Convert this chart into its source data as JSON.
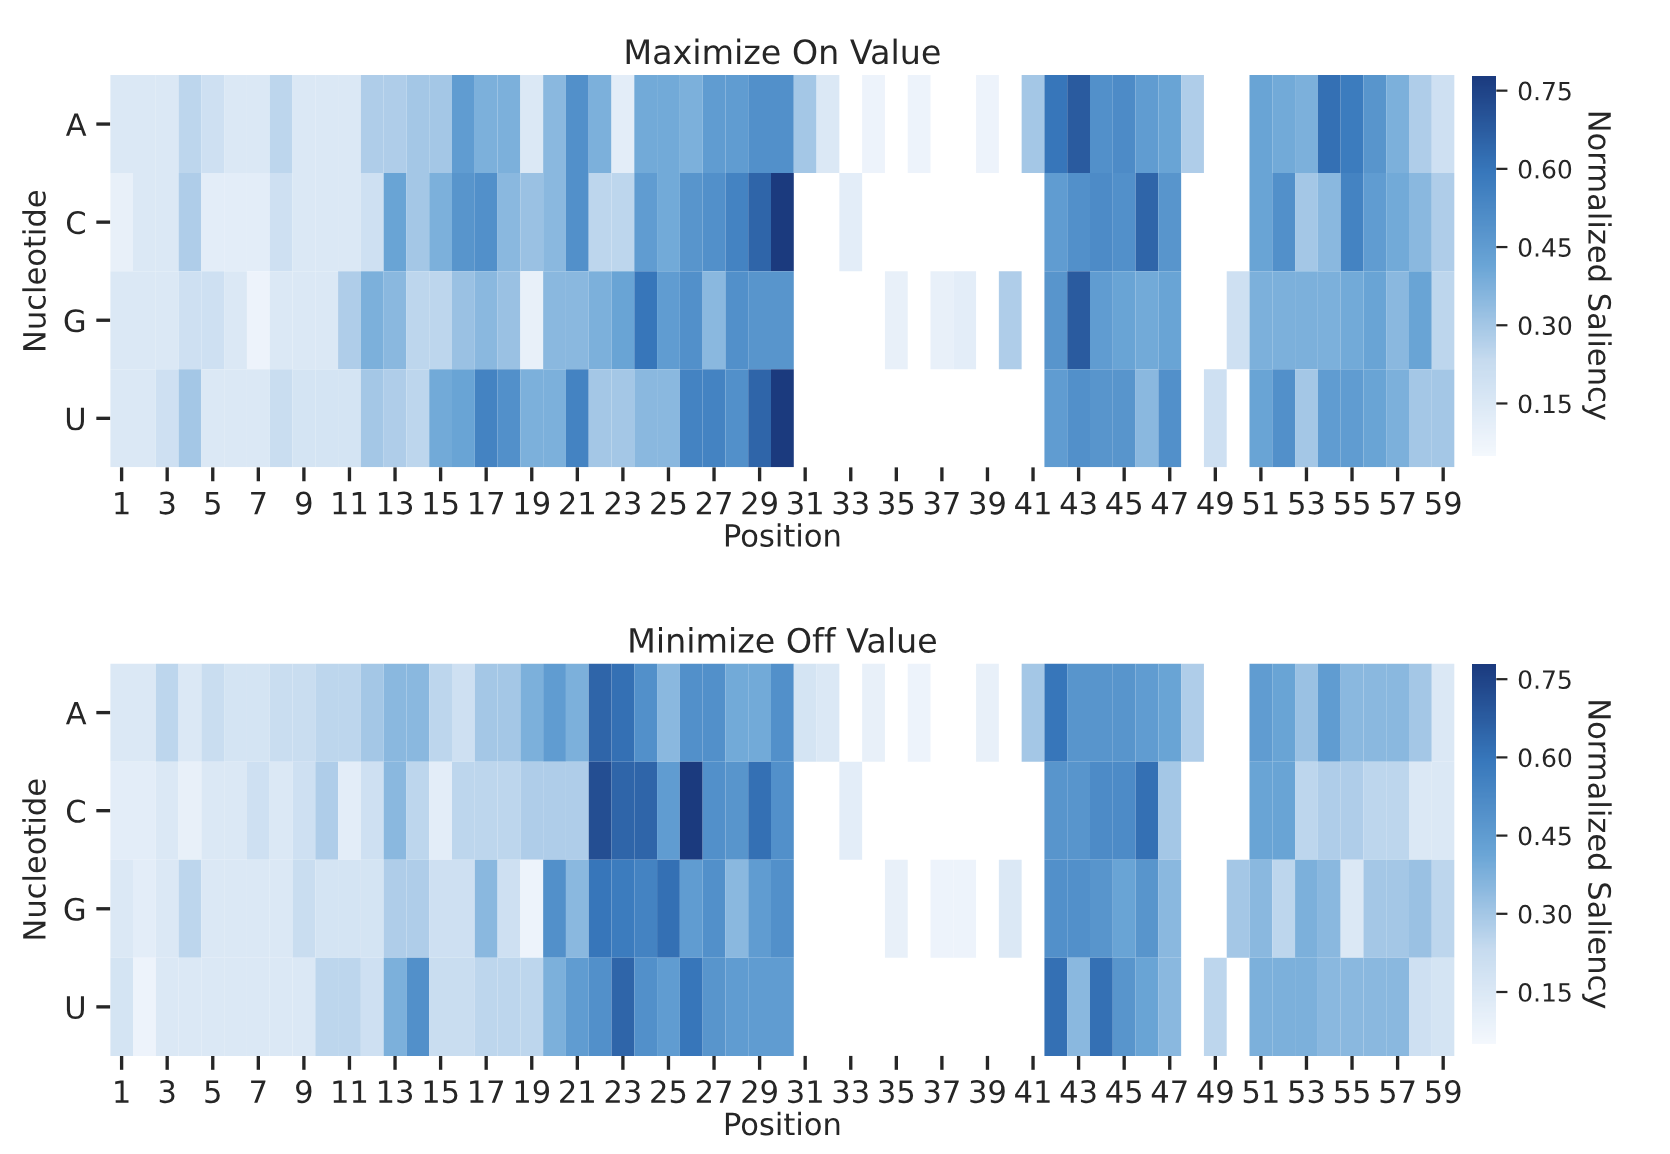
{
  "chart_data": [
    {
      "type": "heatmap",
      "title": "Maximize On Value",
      "xlabel": "Position",
      "ylabel": "Nucleotide",
      "clabel": "Normalized Saliency",
      "categories": [
        "1",
        null,
        "3",
        null,
        "5",
        null,
        "7",
        null,
        "9",
        null,
        "11",
        null,
        "13",
        null,
        "15",
        null,
        "17",
        null,
        "19",
        null,
        "21",
        null,
        "23",
        null,
        "25",
        null,
        "27",
        null,
        "29",
        null,
        "31",
        null,
        "33",
        null,
        "35",
        null,
        "37",
        null,
        "39",
        null,
        "41",
        null,
        "43",
        null,
        "45",
        null,
        "47",
        null,
        "49",
        null,
        "51",
        null,
        "53",
        null,
        "55",
        null,
        "57",
        null,
        "59"
      ],
      "y_categories": [
        "A",
        "C",
        "G",
        "U"
      ],
      "clim": [
        0.05,
        0.78
      ],
      "cticks": [
        {
          "value": 0.15,
          "label": "0.15"
        },
        {
          "value": 0.3,
          "label": "0.30"
        },
        {
          "value": 0.45,
          "label": "0.45"
        },
        {
          "value": 0.6,
          "label": "0.60"
        },
        {
          "value": 0.75,
          "label": "0.75"
        }
      ],
      "cells": [
        [
          0.15,
          0.15,
          0.15,
          0.25,
          0.2,
          0.15,
          0.15,
          0.25,
          0.15,
          0.15,
          0.15,
          0.28,
          0.28,
          0.3,
          0.3,
          0.45,
          0.38,
          0.38,
          0.15,
          0.35,
          0.5,
          0.38,
          0.12,
          0.4,
          0.4,
          0.38,
          0.45,
          0.45,
          0.5,
          0.5,
          0.3,
          0.15,
          null,
          0.08,
          null,
          0.08,
          null,
          null,
          0.08,
          null,
          0.3,
          0.6,
          0.68,
          0.5,
          0.52,
          0.45,
          0.42,
          0.28,
          null,
          null,
          0.42,
          0.4,
          0.38,
          0.62,
          0.58,
          0.48,
          0.38,
          0.28,
          0.2
        ],
        [
          0.1,
          0.15,
          0.15,
          0.28,
          0.12,
          0.12,
          0.12,
          0.2,
          0.15,
          0.15,
          0.15,
          0.2,
          0.42,
          0.3,
          0.38,
          0.48,
          0.5,
          0.35,
          0.32,
          0.35,
          0.5,
          0.25,
          0.25,
          0.45,
          0.4,
          0.48,
          0.5,
          0.55,
          0.65,
          0.78,
          null,
          null,
          0.12,
          null,
          null,
          null,
          null,
          null,
          null,
          null,
          null,
          0.45,
          0.5,
          0.52,
          0.5,
          0.65,
          0.48,
          null,
          null,
          null,
          0.42,
          0.5,
          0.3,
          0.35,
          0.55,
          0.45,
          0.4,
          0.35,
          0.28
        ],
        [
          0.15,
          0.15,
          0.15,
          0.2,
          0.2,
          0.15,
          0.08,
          0.15,
          0.15,
          0.15,
          0.28,
          0.38,
          0.35,
          0.25,
          0.25,
          0.32,
          0.35,
          0.32,
          0.1,
          0.35,
          0.35,
          0.38,
          0.42,
          0.6,
          0.45,
          0.5,
          0.35,
          0.5,
          0.48,
          0.48,
          null,
          null,
          null,
          null,
          0.1,
          null,
          0.1,
          0.12,
          null,
          0.28,
          null,
          0.48,
          0.68,
          0.45,
          0.42,
          0.4,
          0.42,
          null,
          null,
          0.2,
          0.38,
          0.38,
          0.38,
          0.38,
          0.4,
          0.42,
          0.35,
          0.42,
          0.25
        ],
        [
          0.15,
          0.15,
          0.2,
          0.3,
          0.15,
          0.15,
          0.15,
          0.22,
          0.18,
          0.18,
          0.18,
          0.3,
          0.28,
          0.25,
          0.4,
          0.42,
          0.55,
          0.5,
          0.38,
          0.38,
          0.55,
          0.3,
          0.3,
          0.35,
          0.35,
          0.55,
          0.55,
          0.5,
          0.65,
          0.78,
          null,
          null,
          null,
          null,
          null,
          null,
          null,
          null,
          null,
          null,
          null,
          0.45,
          0.5,
          0.48,
          0.48,
          0.35,
          0.5,
          null,
          0.2,
          null,
          0.42,
          0.5,
          0.3,
          0.45,
          0.45,
          0.42,
          0.38,
          0.3,
          0.3
        ]
      ]
    },
    {
      "type": "heatmap",
      "title": "Minimize Off Value",
      "xlabel": "Position",
      "ylabel": "Nucleotide",
      "clabel": "Normalized Saliency",
      "categories": [
        "1",
        null,
        "3",
        null,
        "5",
        null,
        "7",
        null,
        "9",
        null,
        "11",
        null,
        "13",
        null,
        "15",
        null,
        "17",
        null,
        "19",
        null,
        "21",
        null,
        "23",
        null,
        "25",
        null,
        "27",
        null,
        "29",
        null,
        "31",
        null,
        "33",
        null,
        "35",
        null,
        "37",
        null,
        "39",
        null,
        "41",
        null,
        "43",
        null,
        "45",
        null,
        "47",
        null,
        "49",
        null,
        "51",
        null,
        "53",
        null,
        "55",
        null,
        "57",
        null,
        "59"
      ],
      "y_categories": [
        "A",
        "C",
        "G",
        "U"
      ],
      "clim": [
        0.05,
        0.78
      ],
      "cticks": [
        {
          "value": 0.15,
          "label": "0.15"
        },
        {
          "value": 0.3,
          "label": "0.30"
        },
        {
          "value": 0.45,
          "label": "0.45"
        },
        {
          "value": 0.6,
          "label": "0.60"
        },
        {
          "value": 0.75,
          "label": "0.75"
        }
      ],
      "cells": [
        [
          0.15,
          0.15,
          0.25,
          0.15,
          0.22,
          0.18,
          0.18,
          0.22,
          0.22,
          0.25,
          0.25,
          0.3,
          0.35,
          0.35,
          0.25,
          0.2,
          0.3,
          0.3,
          0.38,
          0.45,
          0.38,
          0.65,
          0.62,
          0.5,
          0.35,
          0.5,
          0.5,
          0.4,
          0.4,
          0.5,
          0.18,
          0.15,
          null,
          0.1,
          null,
          0.08,
          null,
          null,
          0.1,
          null,
          0.3,
          0.6,
          0.48,
          0.48,
          0.48,
          0.45,
          0.42,
          0.28,
          null,
          null,
          0.45,
          0.42,
          0.32,
          0.45,
          0.35,
          0.35,
          0.35,
          0.3,
          0.15
        ],
        [
          0.12,
          0.12,
          0.15,
          0.1,
          0.15,
          0.15,
          0.2,
          0.15,
          0.2,
          0.28,
          0.12,
          0.2,
          0.35,
          0.25,
          0.12,
          0.25,
          0.25,
          0.25,
          0.28,
          0.28,
          0.28,
          0.72,
          0.65,
          0.65,
          0.45,
          0.78,
          0.5,
          0.48,
          0.62,
          0.5,
          null,
          null,
          0.12,
          null,
          null,
          null,
          null,
          null,
          null,
          null,
          null,
          0.48,
          0.48,
          0.52,
          0.52,
          0.62,
          0.3,
          null,
          null,
          null,
          0.42,
          0.42,
          0.25,
          0.28,
          0.28,
          0.25,
          0.25,
          0.15,
          0.15
        ],
        [
          0.15,
          0.12,
          0.15,
          0.25,
          0.15,
          0.15,
          0.15,
          0.15,
          0.22,
          0.18,
          0.18,
          0.18,
          0.28,
          0.28,
          0.2,
          0.2,
          0.35,
          0.2,
          0.08,
          0.5,
          0.35,
          0.6,
          0.58,
          0.55,
          0.62,
          0.45,
          0.5,
          0.35,
          0.45,
          0.5,
          null,
          null,
          null,
          null,
          0.1,
          null,
          0.08,
          0.08,
          null,
          0.15,
          null,
          0.5,
          0.5,
          0.48,
          0.42,
          0.48,
          0.35,
          null,
          null,
          0.3,
          0.35,
          0.25,
          0.38,
          0.35,
          0.15,
          0.3,
          0.3,
          0.32,
          0.25
        ],
        [
          0.18,
          0.08,
          0.15,
          0.15,
          0.15,
          0.15,
          0.15,
          0.15,
          0.15,
          0.25,
          0.25,
          0.2,
          0.38,
          0.5,
          0.22,
          0.22,
          0.25,
          0.25,
          0.25,
          0.38,
          0.45,
          0.5,
          0.65,
          0.5,
          0.45,
          0.6,
          0.48,
          0.45,
          0.45,
          0.45,
          null,
          null,
          null,
          null,
          null,
          null,
          null,
          null,
          null,
          null,
          null,
          0.62,
          0.35,
          0.62,
          0.48,
          0.42,
          0.35,
          null,
          0.25,
          null,
          0.38,
          0.38,
          0.38,
          0.35,
          0.35,
          0.35,
          0.35,
          0.2,
          0.18
        ]
      ]
    }
  ]
}
